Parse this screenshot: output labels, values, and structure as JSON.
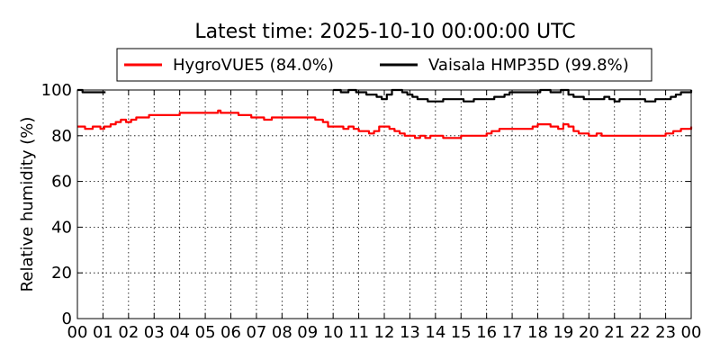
{
  "chart_data": {
    "type": "line",
    "title": "Latest time: 2025-10-10 00:00:00 UTC",
    "xlabel": "",
    "ylabel": "Relative humidity (%)",
    "ylim": [
      0,
      100
    ],
    "xlim": [
      0,
      24
    ],
    "yticks": [
      0,
      20,
      40,
      60,
      80,
      100
    ],
    "xtick_labels": [
      "00",
      "01",
      "02",
      "03",
      "04",
      "05",
      "06",
      "07",
      "08",
      "09",
      "10",
      "11",
      "12",
      "13",
      "14",
      "15",
      "16",
      "17",
      "18",
      "19",
      "20",
      "21",
      "22",
      "23",
      "00"
    ],
    "grid": true,
    "legend_position": "top-center",
    "series": [
      {
        "name": "HygroVUE5 (84.0%)",
        "color": "#ff0000",
        "x": [
          0.0,
          0.3,
          0.6,
          0.9,
          1.05,
          1.3,
          1.5,
          1.7,
          1.9,
          2.1,
          2.3,
          2.5,
          2.8,
          3.0,
          3.5,
          3.9,
          4.0,
          4.5,
          5.0,
          5.3,
          5.5,
          5.6,
          5.8,
          6.0,
          6.3,
          6.5,
          6.8,
          7.0,
          7.3,
          7.6,
          8.0,
          8.3,
          8.6,
          9.0,
          9.3,
          9.6,
          9.8,
          10.0,
          10.2,
          10.4,
          10.6,
          10.8,
          11.0,
          11.2,
          11.4,
          11.6,
          11.8,
          12.0,
          12.2,
          12.4,
          12.6,
          12.8,
          13.0,
          13.2,
          13.4,
          13.6,
          13.8,
          14.0,
          14.3,
          14.6,
          15.0,
          15.5,
          15.8,
          16.0,
          16.2,
          16.5,
          17.0,
          17.5,
          17.8,
          18.0,
          18.3,
          18.5,
          18.8,
          19.0,
          19.2,
          19.4,
          19.6,
          19.8,
          20.0,
          20.3,
          20.5,
          20.8,
          21.0,
          21.3,
          21.6,
          22.0,
          22.5,
          22.8,
          23.0,
          23.3,
          23.6,
          24.0
        ],
        "values": [
          84,
          83,
          84,
          83,
          84,
          85,
          86,
          87,
          86,
          87,
          88,
          88,
          89,
          89,
          89,
          89,
          90,
          90,
          90,
          90,
          91,
          90,
          90,
          90,
          89,
          89,
          88,
          88,
          87,
          88,
          88,
          88,
          88,
          88,
          87,
          86,
          84,
          84,
          84,
          83,
          84,
          83,
          82,
          82,
          81,
          82,
          84,
          84,
          83,
          82,
          81,
          80,
          80,
          79,
          80,
          79,
          80,
          80,
          79,
          79,
          80,
          80,
          80,
          81,
          82,
          83,
          83,
          83,
          84,
          85,
          85,
          84,
          83,
          85,
          84,
          82,
          81,
          81,
          80,
          81,
          80,
          80,
          80,
          80,
          80,
          80,
          80,
          80,
          81,
          82,
          83,
          84
        ]
      },
      {
        "name": "Vaisala HMP35D (99.8%)",
        "color": "#000000",
        "x": [
          0.0,
          0.2,
          0.4,
          0.6,
          0.8,
          1.1,
          9.7,
          10.0,
          10.3,
          10.6,
          10.9,
          11.1,
          11.3,
          11.5,
          11.7,
          11.9,
          12.1,
          12.3,
          12.5,
          12.7,
          12.9,
          13.1,
          13.3,
          13.5,
          13.7,
          13.9,
          14.1,
          14.3,
          14.5,
          14.7,
          14.9,
          15.1,
          15.3,
          15.5,
          15.7,
          15.9,
          16.1,
          16.3,
          16.5,
          16.7,
          16.9,
          17.1,
          17.3,
          17.5,
          17.7,
          17.9,
          18.1,
          18.3,
          18.5,
          18.7,
          18.9,
          19.0,
          19.2,
          19.4,
          19.6,
          19.8,
          20.0,
          20.2,
          20.4,
          20.6,
          20.8,
          21.0,
          21.2,
          21.4,
          21.6,
          21.8,
          22.0,
          22.2,
          22.4,
          22.6,
          22.8,
          23.0,
          23.2,
          23.4,
          23.6,
          24.0
        ],
        "values": [
          100,
          99,
          99,
          99,
          99,
          99,
          null,
          100,
          99,
          100,
          99,
          99,
          98,
          98,
          97,
          96,
          98,
          100,
          100,
          99,
          98,
          97,
          96,
          96,
          95,
          95,
          95,
          96,
          96,
          96,
          96,
          95,
          95,
          96,
          96,
          96,
          96,
          97,
          97,
          98,
          99,
          99,
          99,
          99,
          99,
          99,
          100,
          100,
          99,
          99,
          100,
          100,
          98,
          97,
          97,
          96,
          96,
          96,
          96,
          97,
          96,
          95,
          96,
          96,
          96,
          96,
          96,
          95,
          95,
          96,
          96,
          96,
          97,
          98,
          99,
          100
        ]
      }
    ]
  }
}
